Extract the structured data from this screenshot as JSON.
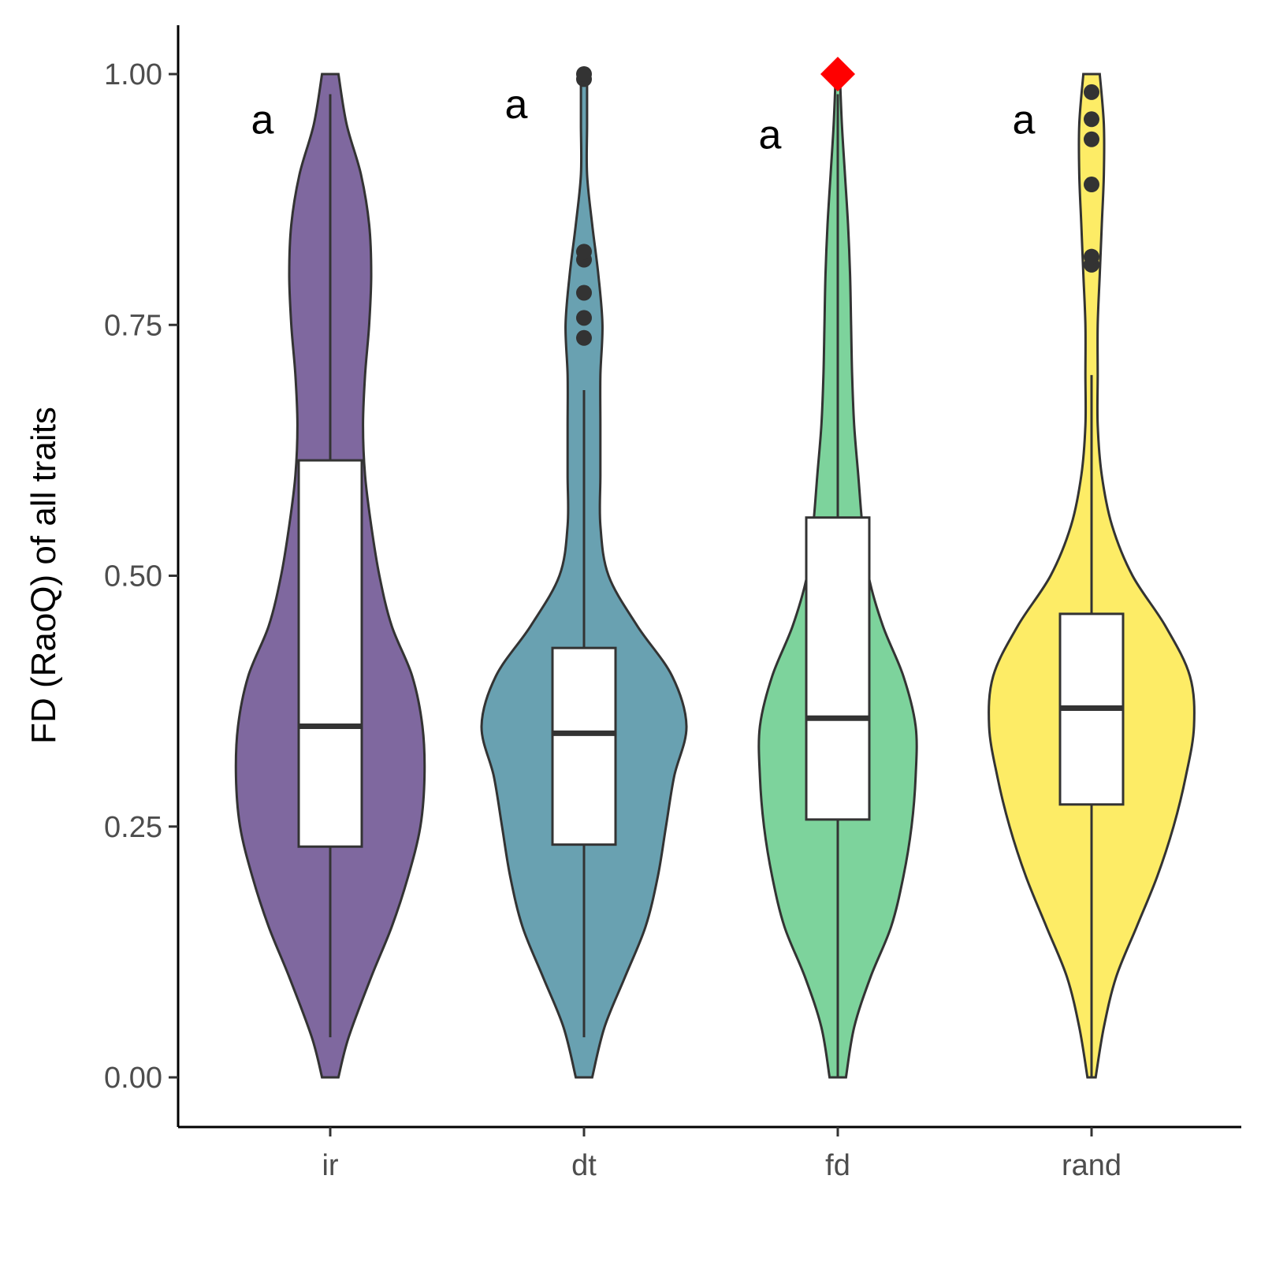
{
  "chart_data": {
    "type": "violin",
    "ylabel": "FD (RaoQ) of all traits",
    "xlabel": "",
    "ylim": [
      -0.05,
      1.05
    ],
    "y_ticks": [
      {
        "value": 0.0,
        "label": "0.00"
      },
      {
        "value": 0.25,
        "label": "0.25"
      },
      {
        "value": 0.5,
        "label": "0.50"
      },
      {
        "value": 0.75,
        "label": "0.75"
      },
      {
        "value": 1.0,
        "label": "1.00"
      }
    ],
    "grid": false,
    "categories": [
      "ir",
      "dt",
      "fd",
      "rand"
    ],
    "groups": [
      {
        "category": "ir",
        "color": "#7f689f",
        "letter": "a",
        "letter_y": 0.955,
        "box": {
          "q1": 0.23,
          "median": 0.35,
          "q3": 0.615,
          "whisker_low": 0.04,
          "whisker_high": 0.98
        },
        "outliers": [],
        "density": [
          [
            0.0,
            0.04
          ],
          [
            0.04,
            0.09
          ],
          [
            0.1,
            0.2
          ],
          [
            0.15,
            0.3
          ],
          [
            0.2,
            0.38
          ],
          [
            0.25,
            0.44
          ],
          [
            0.3,
            0.46
          ],
          [
            0.35,
            0.45
          ],
          [
            0.4,
            0.4
          ],
          [
            0.45,
            0.3
          ],
          [
            0.5,
            0.24
          ],
          [
            0.55,
            0.2
          ],
          [
            0.6,
            0.17
          ],
          [
            0.65,
            0.16
          ],
          [
            0.7,
            0.17
          ],
          [
            0.75,
            0.19
          ],
          [
            0.8,
            0.2
          ],
          [
            0.85,
            0.19
          ],
          [
            0.9,
            0.15
          ],
          [
            0.95,
            0.08
          ],
          [
            1.0,
            0.04
          ]
        ],
        "summary_marker": null
      },
      {
        "category": "dt",
        "color": "#69a1b1",
        "letter": "a",
        "letter_y": 0.97,
        "box": {
          "q1": 0.232,
          "median": 0.343,
          "q3": 0.428,
          "whisker_low": 0.04,
          "whisker_high": 0.685
        },
        "outliers": [
          0.737,
          0.757,
          0.782,
          0.815,
          0.823,
          0.995,
          1.0
        ],
        "density": [
          [
            0.0,
            0.04
          ],
          [
            0.05,
            0.1
          ],
          [
            0.1,
            0.2
          ],
          [
            0.15,
            0.3
          ],
          [
            0.2,
            0.36
          ],
          [
            0.25,
            0.4
          ],
          [
            0.3,
            0.44
          ],
          [
            0.35,
            0.5
          ],
          [
            0.4,
            0.43
          ],
          [
            0.45,
            0.26
          ],
          [
            0.5,
            0.12
          ],
          [
            0.55,
            0.08
          ],
          [
            0.6,
            0.08
          ],
          [
            0.65,
            0.08
          ],
          [
            0.7,
            0.08
          ],
          [
            0.75,
            0.09
          ],
          [
            0.8,
            0.07
          ],
          [
            0.85,
            0.04
          ],
          [
            0.9,
            0.015
          ],
          [
            0.95,
            0.015
          ],
          [
            1.0,
            0.015
          ]
        ],
        "summary_marker": null
      },
      {
        "category": "fd",
        "color": "#7dd39c",
        "letter": "a",
        "letter_y": 0.94,
        "box": {
          "q1": 0.257,
          "median": 0.358,
          "q3": 0.558,
          "whisker_low": 0.0,
          "whisker_high": 0.98
        },
        "outliers": [],
        "density": [
          [
            0.0,
            0.04
          ],
          [
            0.05,
            0.08
          ],
          [
            0.1,
            0.16
          ],
          [
            0.15,
            0.26
          ],
          [
            0.2,
            0.32
          ],
          [
            0.25,
            0.36
          ],
          [
            0.3,
            0.38
          ],
          [
            0.35,
            0.38
          ],
          [
            0.4,
            0.32
          ],
          [
            0.45,
            0.22
          ],
          [
            0.5,
            0.15
          ],
          [
            0.55,
            0.12
          ],
          [
            0.6,
            0.1
          ],
          [
            0.65,
            0.08
          ],
          [
            0.7,
            0.07
          ],
          [
            0.75,
            0.065
          ],
          [
            0.8,
            0.06
          ],
          [
            0.85,
            0.05
          ],
          [
            0.9,
            0.035
          ],
          [
            0.95,
            0.02
          ],
          [
            1.0,
            0.01
          ]
        ],
        "summary_marker": {
          "value": 1.0,
          "shape": "diamond",
          "color": "#ff0000"
        }
      },
      {
        "category": "rand",
        "color": "#fdec66",
        "letter": "a",
        "letter_y": 0.955,
        "box": {
          "q1": 0.272,
          "median": 0.368,
          "q3": 0.462,
          "whisker_low": 0.0,
          "whisker_high": 0.7
        },
        "outliers": [
          0.81,
          0.818,
          0.89,
          0.935,
          0.955,
          0.982
        ],
        "density": [
          [
            0.0,
            0.02
          ],
          [
            0.05,
            0.06
          ],
          [
            0.1,
            0.12
          ],
          [
            0.15,
            0.22
          ],
          [
            0.2,
            0.32
          ],
          [
            0.25,
            0.4
          ],
          [
            0.3,
            0.46
          ],
          [
            0.35,
            0.5
          ],
          [
            0.4,
            0.48
          ],
          [
            0.45,
            0.36
          ],
          [
            0.5,
            0.2
          ],
          [
            0.55,
            0.1
          ],
          [
            0.6,
            0.05
          ],
          [
            0.65,
            0.03
          ],
          [
            0.7,
            0.03
          ],
          [
            0.75,
            0.03
          ],
          [
            0.8,
            0.04
          ],
          [
            0.85,
            0.05
          ],
          [
            0.9,
            0.06
          ],
          [
            0.95,
            0.06
          ],
          [
            1.0,
            0.04
          ]
        ],
        "summary_marker": null
      }
    ]
  }
}
